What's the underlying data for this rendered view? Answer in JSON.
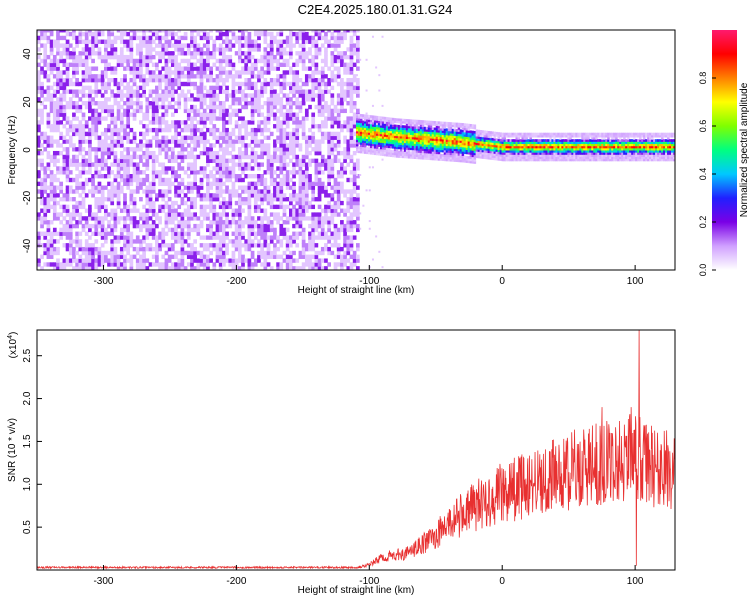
{
  "title": "C2E4.2025.180.01.31.G24",
  "chart_data": [
    {
      "type": "heatmap",
      "ylabel": "Frequency (Hz)",
      "xlabel": "Height of straight line (km)",
      "xlim": [
        -350,
        130
      ],
      "ylim": [
        -50,
        50
      ],
      "xticks": [
        -300,
        -200,
        -100,
        0,
        100
      ],
      "yticks": [
        -40,
        -20,
        0,
        20,
        40
      ],
      "colorbar": {
        "label": "Normalized spectral amplitude",
        "range": [
          0,
          1
        ],
        "ticks": [
          0.0,
          0.2,
          0.4,
          0.6,
          0.8
        ],
        "tick_labels": [
          "0.0",
          "0.2",
          "0.4",
          "0.6",
          "0.8"
        ],
        "colormap": [
          "#ffffff",
          "#d0a0ff",
          "#7a00e6",
          "#2020ff",
          "#00c8ff",
          "#00ff80",
          "#80ff00",
          "#ffff00",
          "#ff8000",
          "#ff0000",
          "#ff1a6e"
        ]
      },
      "regions": [
        {
          "x_range": [
            -350,
            -110
          ],
          "y_range": [
            -50,
            50
          ],
          "description": "noise",
          "amplitude_range": [
            0.0,
            0.2
          ]
        },
        {
          "x_range": [
            -110,
            130
          ],
          "center_line": [
            [
              -110,
              7
            ],
            [
              -80,
              5
            ],
            [
              -30,
              3
            ],
            [
              0,
              1
            ],
            [
              50,
              1
            ],
            [
              100,
              1
            ],
            [
              130,
              1
            ]
          ],
          "amplitude_range": [
            0.3,
            0.95
          ]
        }
      ],
      "grid": false
    },
    {
      "type": "line",
      "ylabel": "SNR (10 * v/v)",
      "yscale_label": "(x10",
      "yscale_exp": "4",
      "xlabel": "Height of straight line (km)",
      "xlim": [
        -350,
        130
      ],
      "ylim": [
        0,
        2.8
      ],
      "xticks": [
        -300,
        -200,
        -100,
        0,
        100
      ],
      "yticks": [
        0.5,
        1.0,
        1.5,
        2.0,
        2.5
      ],
      "ytick_labels": [
        "0.5",
        "1.0",
        "1.5",
        "2.0",
        "2.5"
      ],
      "series": [
        {
          "color": "#e83030",
          "envelope": [
            [
              -350,
              0.03
            ],
            [
              -250,
              0.03
            ],
            [
              -150,
              0.03
            ],
            [
              -110,
              0.03
            ],
            [
              -100,
              0.06
            ],
            [
              -90,
              0.15
            ],
            [
              -70,
              0.2
            ],
            [
              -50,
              0.4
            ],
            [
              -40,
              0.55
            ],
            [
              -20,
              0.75
            ],
            [
              0,
              0.9
            ],
            [
              20,
              1.0
            ],
            [
              40,
              1.1
            ],
            [
              60,
              1.2
            ],
            [
              80,
              1.25
            ],
            [
              100,
              1.35
            ],
            [
              105,
              1.25
            ],
            [
              115,
              1.2
            ],
            [
              130,
              1.15
            ]
          ],
          "spikes": [
            [
              103,
              2.8
            ],
            [
              101,
              0.05
            ],
            [
              97,
              1.9
            ],
            [
              75,
              1.9
            ]
          ]
        }
      ],
      "grid": false
    }
  ]
}
